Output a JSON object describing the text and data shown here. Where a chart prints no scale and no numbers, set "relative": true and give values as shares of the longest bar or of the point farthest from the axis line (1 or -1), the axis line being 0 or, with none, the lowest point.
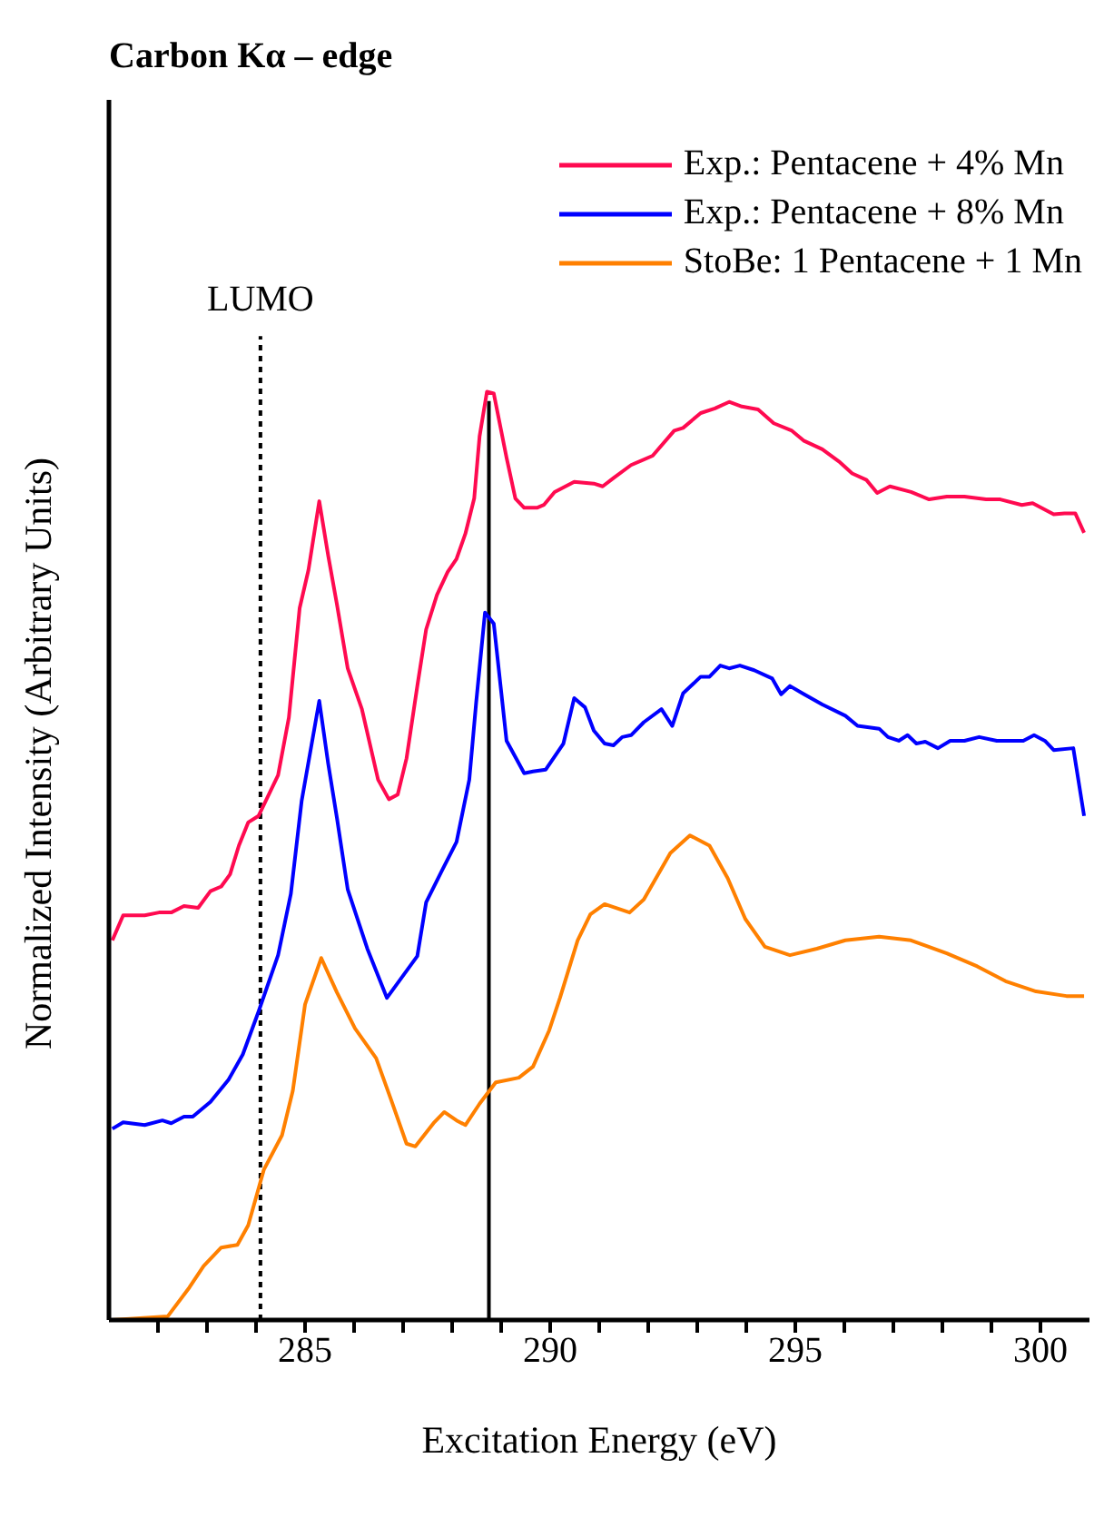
{
  "chart_data": {
    "type": "line",
    "title": "Carbon Kα – edge",
    "xlabel": "Excitation Energy (eV)",
    "ylabel": "Normalized Intensity (Arbitrary Units)",
    "relative": true,
    "xlim": [
      281,
      301
    ],
    "xticks": [
      {
        "value": 282,
        "label": null
      },
      {
        "value": 283,
        "label": null
      },
      {
        "value": 284,
        "label": null
      },
      285,
      {
        "value": 286,
        "label": null
      },
      {
        "value": 287,
        "label": null
      },
      {
        "value": 288,
        "label": null
      },
      {
        "value": 289,
        "label": null
      },
      290,
      {
        "value": 291,
        "label": null
      },
      {
        "value": 292,
        "label": null
      },
      {
        "value": 293,
        "label": null
      },
      {
        "value": 294,
        "label": null
      },
      295,
      {
        "value": 296,
        "label": null
      },
      {
        "value": 297,
        "label": null
      },
      {
        "value": 298,
        "label": null
      },
      {
        "value": 299,
        "label": null
      },
      300
    ],
    "legend": "top right",
    "grid": false,
    "marker": "none",
    "line_style": "solid",
    "ref_lines": [
      {
        "axis": "x",
        "value": 284.09,
        "label": "LUMO",
        "color": "#000000",
        "line_style": "dotted"
      },
      {
        "axis": "x",
        "value": 288.75,
        "label": null,
        "color": "#000000",
        "line_style": "solid"
      }
    ],
    "series": [
      {
        "name": "Exp.: Pentacene + 4% Mn",
        "color": "#ff0a50",
        "x": [
          281.07,
          281.29,
          281.73,
          282.02,
          282.27,
          282.53,
          282.82,
          283.07,
          283.29,
          283.47,
          283.65,
          283.84,
          284.05,
          284.45,
          284.67,
          284.89,
          285.07,
          285.29,
          285.47,
          285.65,
          285.87,
          286.16,
          286.49,
          286.71,
          286.89,
          287.07,
          287.29,
          287.47,
          287.69,
          287.91,
          288.09,
          288.27,
          288.45,
          288.56,
          288.71,
          288.85,
          289.11,
          289.29,
          289.47,
          289.73,
          289.87,
          290.09,
          290.49,
          290.89,
          291.07,
          291.29,
          291.65,
          292.09,
          292.53,
          292.71,
          293.07,
          293.36,
          293.65,
          293.91,
          294.24,
          294.56,
          294.93,
          295.18,
          295.55,
          295.91,
          296.16,
          296.45,
          296.67,
          296.93,
          297.36,
          297.73,
          298.09,
          298.45,
          298.89,
          299.18,
          299.62,
          299.84,
          300.27,
          300.49,
          300.71,
          300.89
        ],
        "values": [
          0.409,
          0.436,
          0.436,
          0.439,
          0.439,
          0.446,
          0.444,
          0.462,
          0.467,
          0.48,
          0.511,
          0.536,
          0.543,
          0.587,
          0.649,
          0.767,
          0.808,
          0.882,
          0.824,
          0.771,
          0.702,
          0.658,
          0.582,
          0.561,
          0.566,
          0.605,
          0.683,
          0.744,
          0.781,
          0.806,
          0.82,
          0.847,
          0.885,
          0.952,
          1.0,
          0.998,
          0.929,
          0.885,
          0.875,
          0.875,
          0.878,
          0.892,
          0.903,
          0.901,
          0.898,
          0.907,
          0.921,
          0.931,
          0.958,
          0.961,
          0.977,
          0.982,
          0.989,
          0.984,
          0.981,
          0.966,
          0.958,
          0.947,
          0.938,
          0.924,
          0.912,
          0.905,
          0.891,
          0.898,
          0.892,
          0.884,
          0.887,
          0.887,
          0.884,
          0.884,
          0.878,
          0.88,
          0.868,
          0.869,
          0.869,
          0.848
        ]
      },
      {
        "name": "Exp.: Pentacene + 8% Mn",
        "color": "#0000ff",
        "x": [
          281.07,
          281.29,
          281.73,
          282.09,
          282.27,
          282.53,
          282.71,
          283.07,
          283.44,
          283.73,
          284.05,
          284.45,
          284.71,
          284.93,
          285.29,
          285.47,
          285.65,
          285.87,
          286.27,
          286.67,
          287.29,
          287.47,
          287.8,
          288.09,
          288.35,
          288.49,
          288.67,
          288.85,
          289.11,
          289.47,
          289.65,
          289.91,
          290.27,
          290.49,
          290.71,
          290.89,
          291.11,
          291.29,
          291.47,
          291.65,
          291.91,
          292.27,
          292.49,
          292.71,
          293.07,
          293.25,
          293.47,
          293.65,
          293.87,
          294.16,
          294.53,
          294.71,
          294.89,
          295.18,
          295.55,
          296.02,
          296.27,
          296.71,
          296.89,
          297.11,
          297.29,
          297.47,
          297.65,
          297.91,
          298.16,
          298.45,
          298.75,
          299.11,
          299.65,
          299.87,
          300.09,
          300.27,
          300.67,
          300.89
        ],
        "values": [
          0.206,
          0.213,
          0.21,
          0.215,
          0.212,
          0.219,
          0.219,
          0.235,
          0.259,
          0.286,
          0.332,
          0.393,
          0.459,
          0.559,
          0.667,
          0.6,
          0.541,
          0.464,
          0.4,
          0.347,
          0.392,
          0.45,
          0.485,
          0.515,
          0.582,
          0.665,
          0.762,
          0.75,
          0.624,
          0.589,
          0.591,
          0.593,
          0.621,
          0.67,
          0.66,
          0.635,
          0.621,
          0.619,
          0.628,
          0.63,
          0.644,
          0.658,
          0.64,
          0.675,
          0.693,
          0.693,
          0.705,
          0.702,
          0.705,
          0.7,
          0.691,
          0.674,
          0.683,
          0.674,
          0.663,
          0.651,
          0.64,
          0.637,
          0.628,
          0.624,
          0.63,
          0.621,
          0.623,
          0.616,
          0.624,
          0.624,
          0.628,
          0.624,
          0.624,
          0.63,
          0.624,
          0.614,
          0.616,
          0.543
        ]
      },
      {
        "name": "StoBe: 1 Pentacene + 1 Mn",
        "color": "#ff8000",
        "x": [
          281.07,
          282.2,
          282.64,
          282.93,
          283.29,
          283.62,
          283.84,
          284.16,
          284.53,
          284.75,
          285.0,
          285.33,
          285.65,
          286.02,
          286.45,
          286.75,
          287.07,
          287.25,
          287.62,
          287.84,
          288.09,
          288.27,
          288.56,
          288.89,
          289.36,
          289.65,
          289.98,
          290.2,
          290.56,
          290.82,
          291.11,
          291.62,
          291.91,
          292.45,
          292.85,
          293.25,
          293.62,
          293.98,
          294.38,
          294.89,
          295.44,
          296.02,
          296.71,
          297.36,
          298.09,
          298.71,
          299.29,
          299.91,
          300.53,
          300.89
        ],
        "values": [
          0,
          0.004,
          0.035,
          0.058,
          0.078,
          0.081,
          0.102,
          0.162,
          0.199,
          0.247,
          0.34,
          0.39,
          0.353,
          0.314,
          0.282,
          0.238,
          0.19,
          0.187,
          0.212,
          0.224,
          0.215,
          0.21,
          0.233,
          0.256,
          0.261,
          0.273,
          0.312,
          0.347,
          0.409,
          0.437,
          0.448,
          0.439,
          0.453,
          0.503,
          0.522,
          0.511,
          0.476,
          0.432,
          0.402,
          0.393,
          0.4,
          0.409,
          0.413,
          0.409,
          0.395,
          0.381,
          0.365,
          0.354,
          0.349,
          0.349
        ]
      }
    ]
  }
}
